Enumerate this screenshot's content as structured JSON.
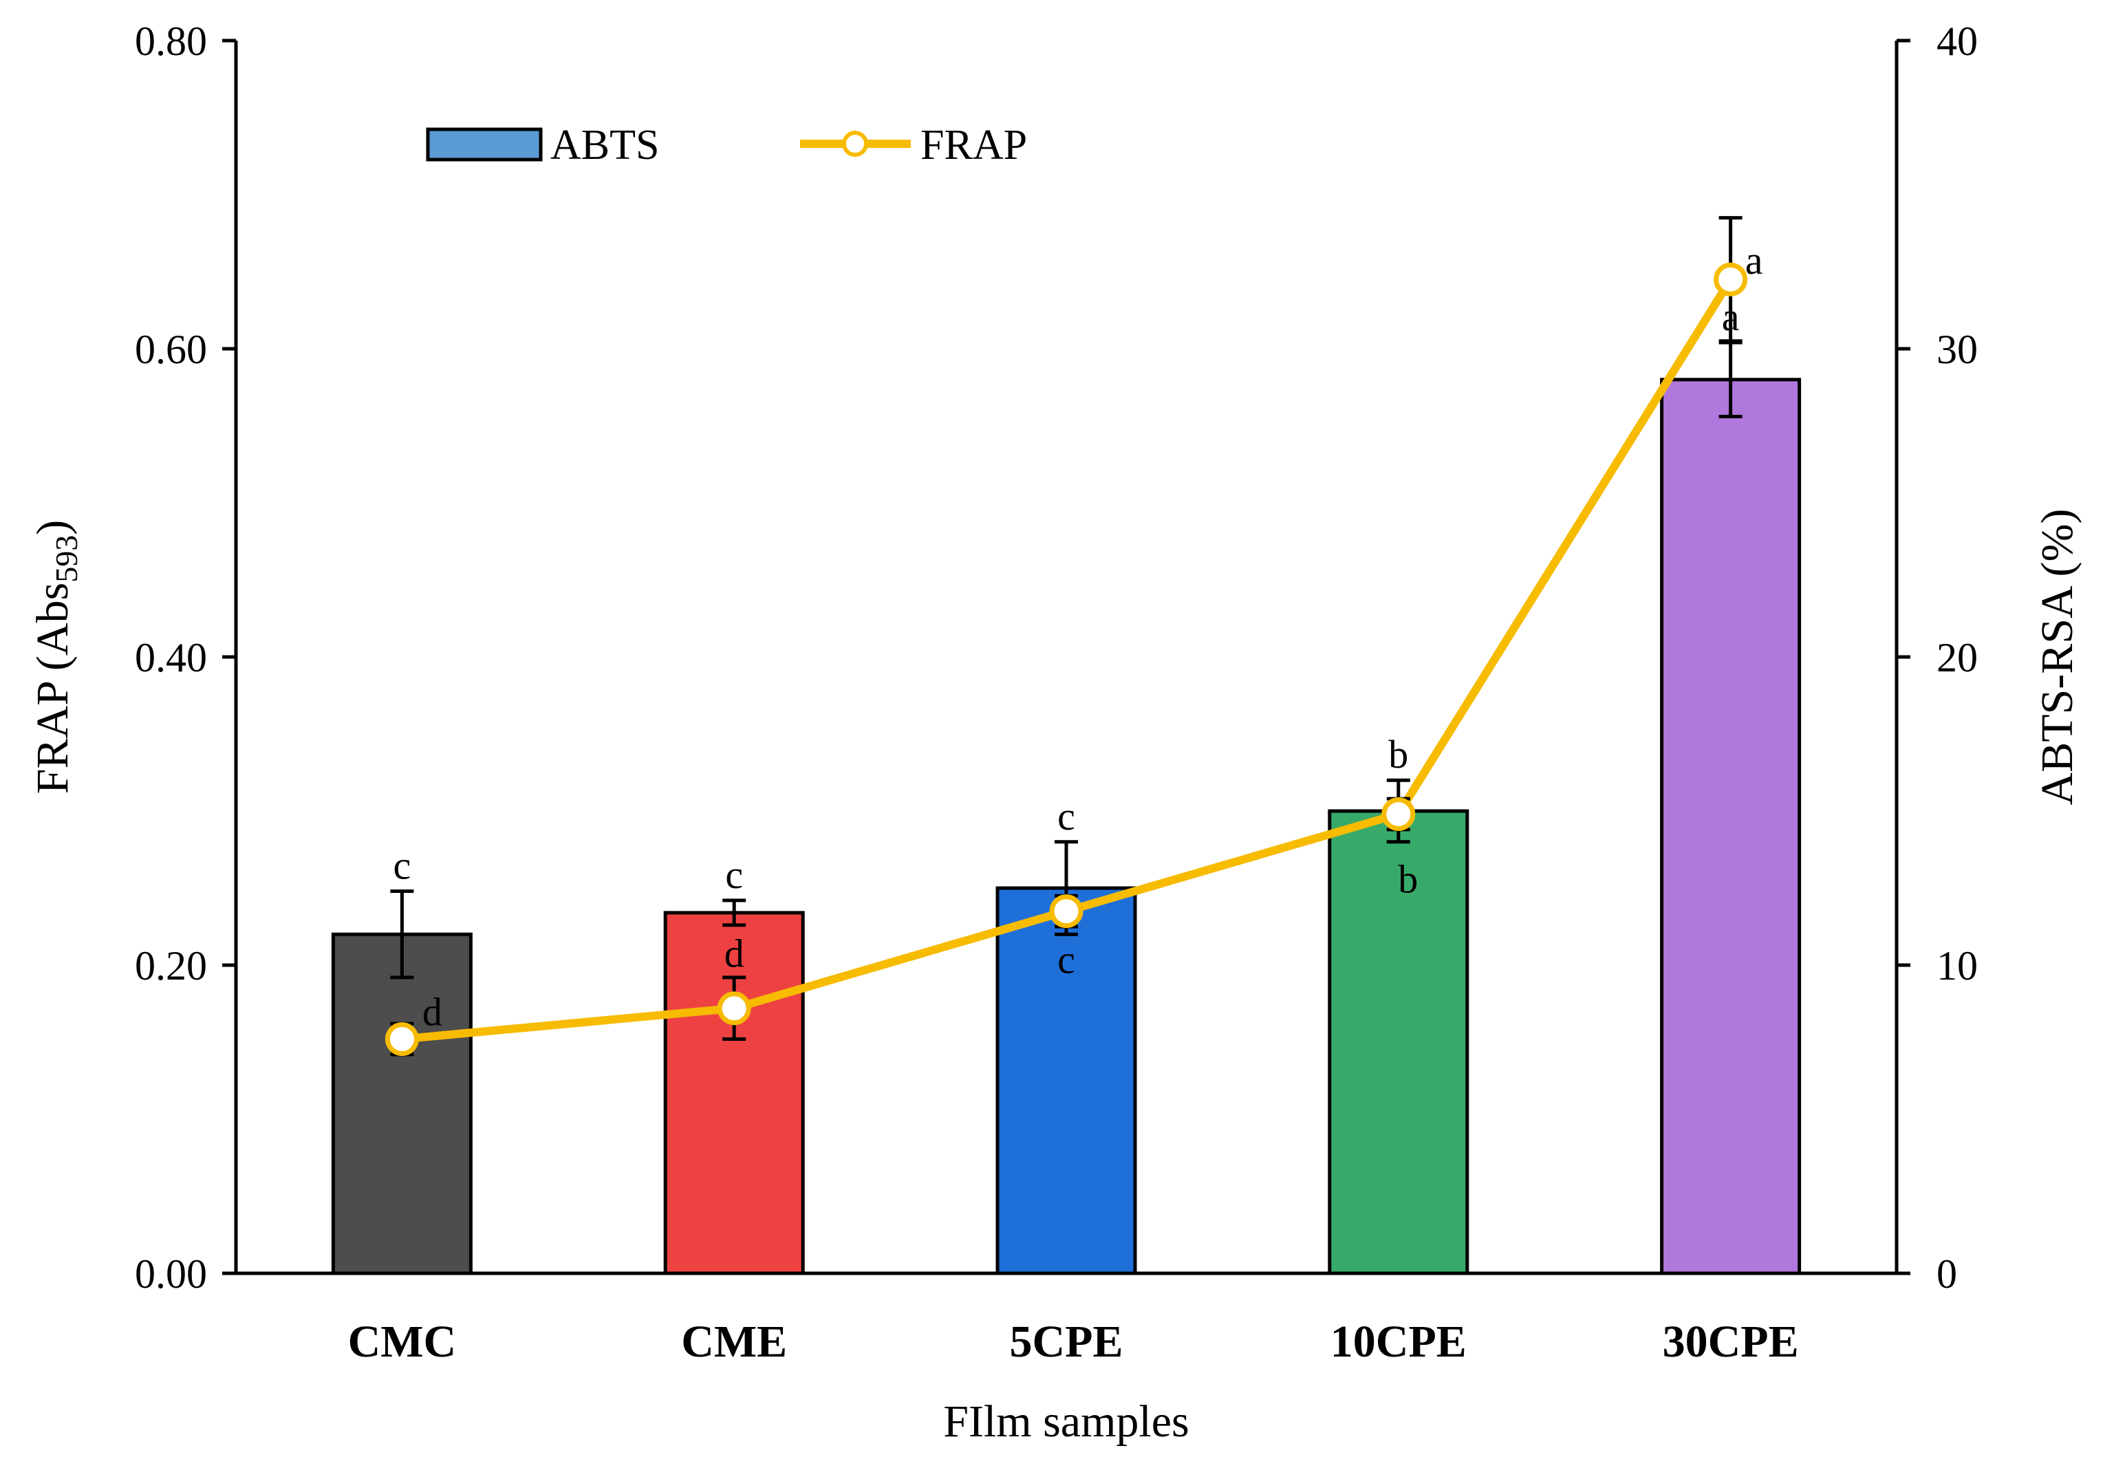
{
  "chart_data": {
    "type": "bar+line",
    "xlabel": "FIlm samples",
    "ylabel_left": "FRAP (Abs",
    "ylabel_left_subscript": "593",
    "ylabel_left_suffix": ")",
    "ylabel_right": "ABTS-RSA  (%)",
    "categories": [
      "CMC",
      "CME",
      "5CPE",
      "10CPE",
      "30CPE"
    ],
    "left_axis": {
      "min": 0,
      "max": 0.8,
      "ticks": [
        "0.00",
        "0.20",
        "0.40",
        "0.60",
        "0.80"
      ],
      "tick_values": [
        0,
        0.2,
        0.4,
        0.6,
        0.8
      ]
    },
    "right_axis": {
      "min": 0,
      "max": 40,
      "ticks": [
        "0",
        "10",
        "20",
        "30",
        "40"
      ],
      "tick_values": [
        0,
        10,
        20,
        30,
        40
      ]
    },
    "legend": {
      "position": "top-left",
      "bar_label": "ABTS",
      "line_label": "FRAP"
    },
    "bar_series": {
      "name": "ABTS",
      "axis": "right",
      "values": [
        11.0,
        11.7,
        12.5,
        15.0,
        29.0
      ],
      "errors": [
        1.4,
        0.4,
        1.5,
        1.0,
        1.2
      ],
      "colors": [
        "#4d4d4d",
        "#ee4242",
        "#1f6fd9",
        "#37aa6a",
        "#b078dd"
      ],
      "significance": [
        "c",
        "c",
        "c",
        "b",
        "a"
      ]
    },
    "line_series": {
      "name": "FRAP",
      "axis": "left",
      "color": "#f7bb00",
      "values": [
        0.152,
        0.172,
        0.235,
        0.298,
        0.645
      ],
      "errors": [
        0.01,
        0.02,
        0.01,
        0.01,
        0.04
      ],
      "significance": [
        "d",
        "d",
        "c",
        "b",
        "a"
      ]
    }
  }
}
